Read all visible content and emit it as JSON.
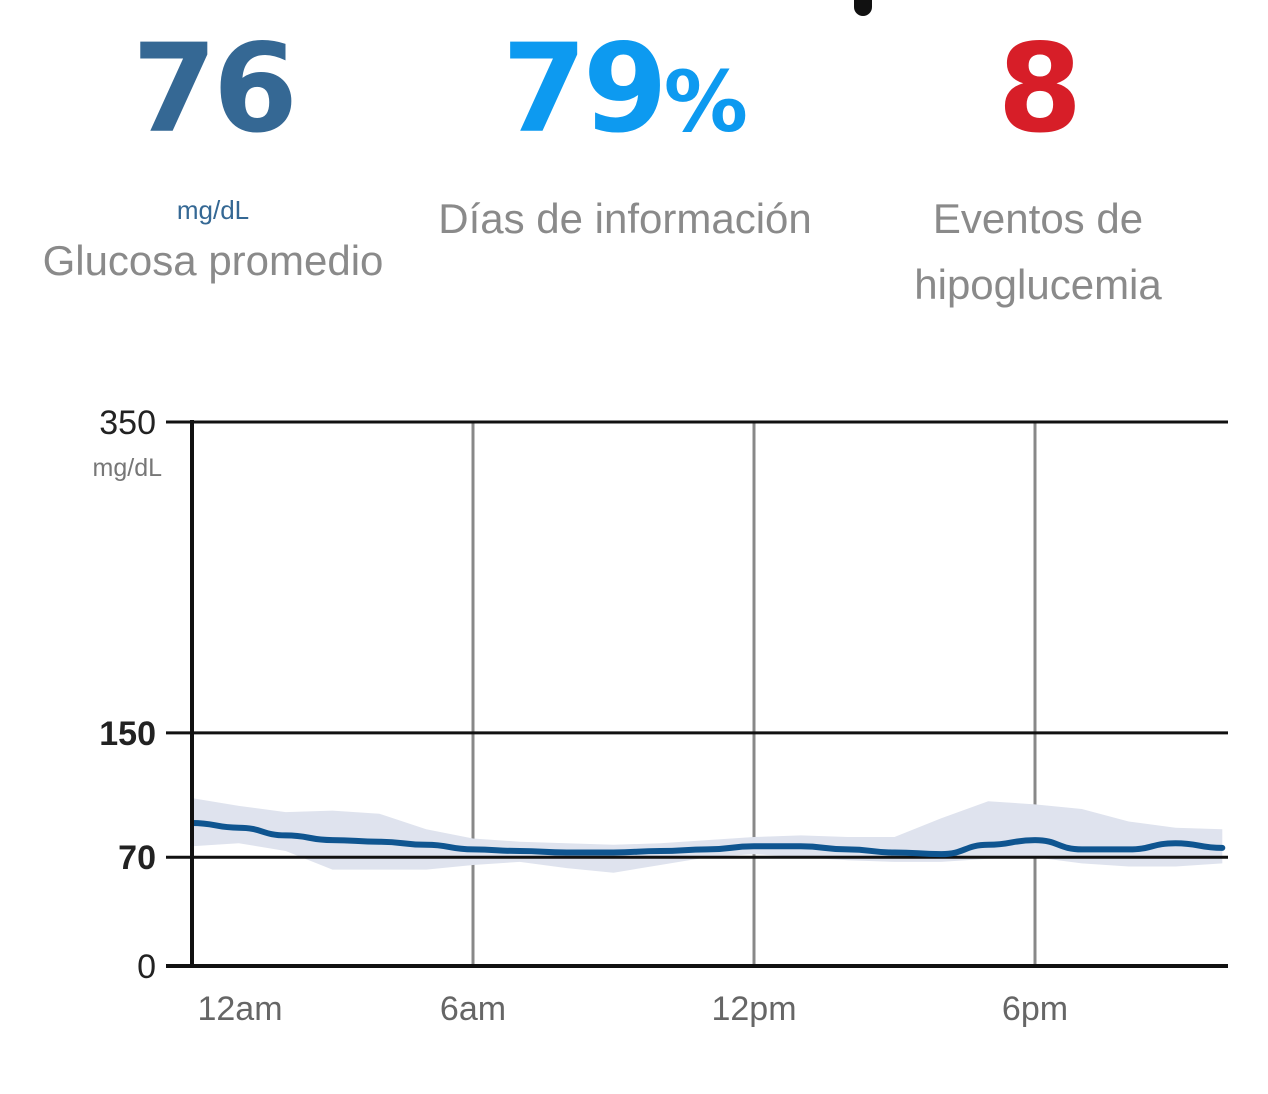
{
  "stats": {
    "average": {
      "value": "76",
      "unit": "mg/dL",
      "label": "Glucosa promedio"
    },
    "days": {
      "value": "79",
      "suffix": "%",
      "label": "Días de información"
    },
    "hypo": {
      "value": "8",
      "label_line1": "Eventos de",
      "label_line2": "hipoglucemia"
    }
  },
  "colors": {
    "average": "#356894",
    "days": "#0d9af0",
    "hypo": "#d71e28",
    "line": "#0f5590",
    "band": "#dfe3ee"
  },
  "chart_data": {
    "type": "line",
    "y_unit": "mg/dL",
    "ylim": [
      0,
      350
    ],
    "yticks": [
      {
        "value": 0,
        "label": "0",
        "bold": false
      },
      {
        "value": 70,
        "label": "70",
        "bold": true
      },
      {
        "value": 150,
        "label": "150",
        "bold": true
      },
      {
        "value": 350,
        "label": "350",
        "bold": false
      }
    ],
    "x_unit_hours": [
      0,
      22
    ],
    "xticks": [
      {
        "value": 0,
        "label": "12am"
      },
      {
        "value": 6,
        "label": "6am"
      },
      {
        "value": 12,
        "label": "12pm"
      },
      {
        "value": 18,
        "label": "6pm"
      }
    ],
    "series": [
      {
        "name": "",
        "x": [
          0,
          1,
          2,
          3,
          4,
          5,
          6,
          7,
          8,
          9,
          10,
          11,
          12,
          13,
          14,
          15,
          16,
          17,
          18,
          19,
          20,
          21,
          22
        ],
        "median": [
          92,
          89,
          84,
          81,
          80,
          78,
          75,
          74,
          73,
          73,
          74,
          75,
          77,
          77,
          75,
          73,
          72,
          78,
          81,
          75,
          75,
          79,
          76
        ],
        "upper": [
          108,
          103,
          99,
          100,
          98,
          88,
          82,
          80,
          79,
          78,
          79,
          81,
          83,
          84,
          83,
          83,
          95,
          106,
          104,
          101,
          93,
          89,
          88
        ],
        "lower": [
          77,
          79,
          74,
          62,
          62,
          62,
          65,
          67,
          63,
          60,
          65,
          70,
          72,
          70,
          68,
          67,
          67,
          69,
          70,
          66,
          64,
          64,
          66
        ]
      }
    ],
    "grid": true
  }
}
